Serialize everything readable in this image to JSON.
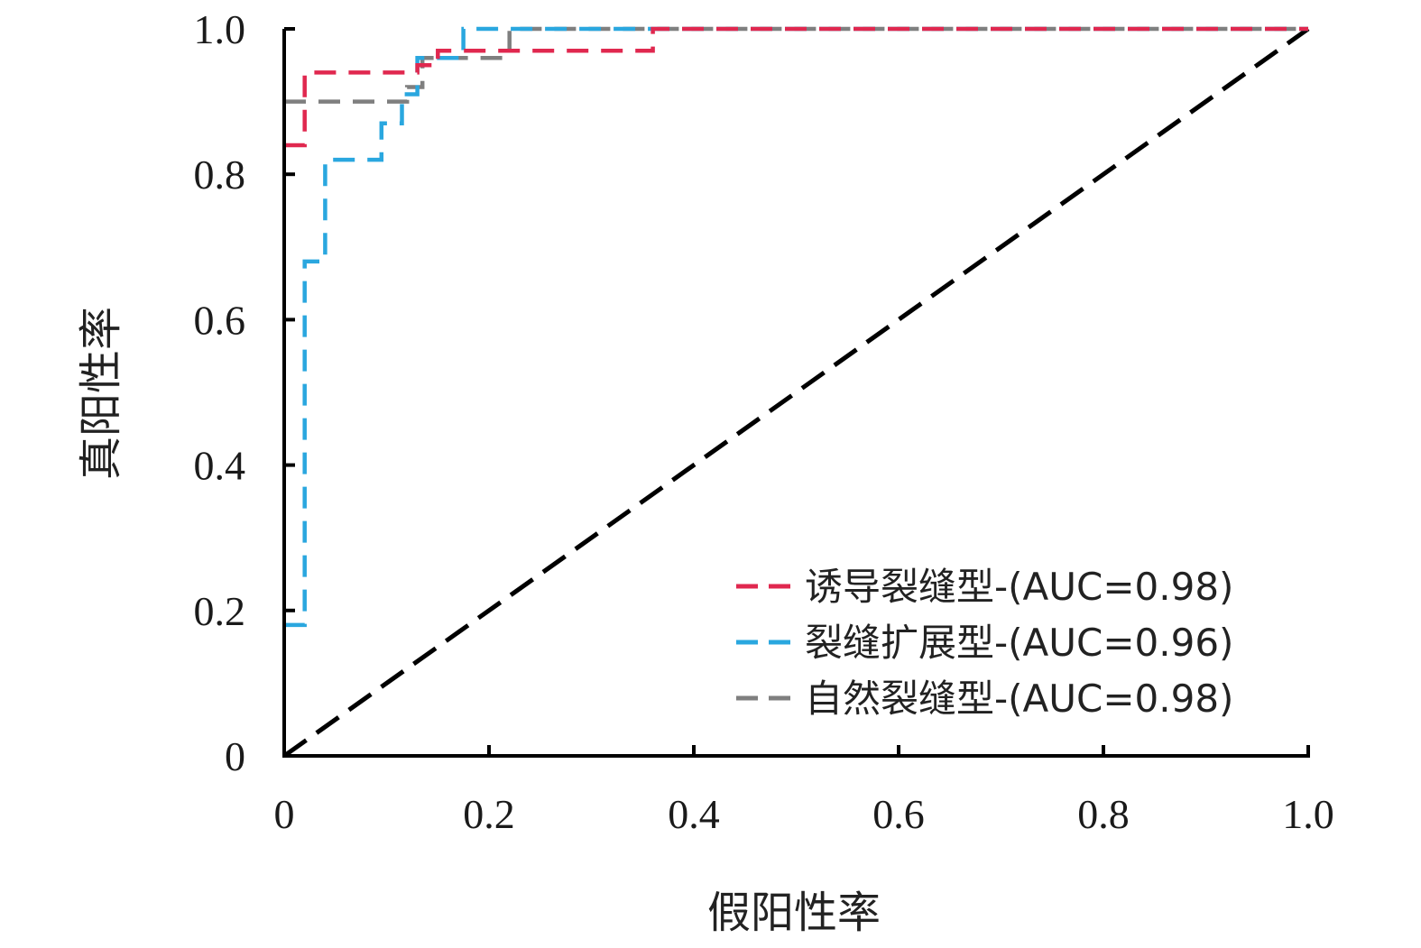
{
  "chart_data": {
    "type": "line",
    "title": "",
    "xlabel": "假阳性率",
    "ylabel": "真阳性率",
    "xlim": [
      0,
      1.0
    ],
    "ylim": [
      0,
      1.0
    ],
    "x_ticks": [
      "0",
      "0.2",
      "0.4",
      "0.6",
      "0.8",
      "1.0"
    ],
    "y_ticks": [
      "0",
      "0.2",
      "0.4",
      "0.6",
      "0.8",
      "1.0"
    ],
    "grid": false,
    "legend_position": "bottom-right",
    "series": [
      {
        "name": "诱导裂缝型-(AUC=0.98)",
        "color": "#e0284f",
        "dash": "dashed",
        "points": [
          [
            0.0,
            0.84
          ],
          [
            0.02,
            0.84
          ],
          [
            0.02,
            0.94
          ],
          [
            0.13,
            0.94
          ],
          [
            0.13,
            0.95
          ],
          [
            0.15,
            0.95
          ],
          [
            0.15,
            0.97
          ],
          [
            0.36,
            0.97
          ],
          [
            0.36,
            1.0
          ],
          [
            1.0,
            1.0
          ]
        ]
      },
      {
        "name": "裂缝扩展型-(AUC=0.96)",
        "color": "#2aa7df",
        "dash": "dashed",
        "points": [
          [
            0.0,
            0.18
          ],
          [
            0.02,
            0.18
          ],
          [
            0.02,
            0.68
          ],
          [
            0.04,
            0.68
          ],
          [
            0.04,
            0.82
          ],
          [
            0.095,
            0.82
          ],
          [
            0.095,
            0.87
          ],
          [
            0.115,
            0.87
          ],
          [
            0.115,
            0.91
          ],
          [
            0.13,
            0.91
          ],
          [
            0.13,
            0.96
          ],
          [
            0.175,
            0.96
          ],
          [
            0.175,
            1.0
          ],
          [
            1.0,
            1.0
          ]
        ]
      },
      {
        "name": "自然裂缝型-(AUC=0.98)",
        "color": "#7f7f7f",
        "dash": "dashed",
        "points": [
          [
            0.0,
            0.9
          ],
          [
            0.12,
            0.9
          ],
          [
            0.12,
            0.92
          ],
          [
            0.135,
            0.92
          ],
          [
            0.135,
            0.96
          ],
          [
            0.22,
            0.96
          ],
          [
            0.22,
            1.0
          ],
          [
            1.0,
            1.0
          ]
        ]
      },
      {
        "name": "",
        "color": "#000000",
        "dash": "dashed",
        "points": [
          [
            0.0,
            0.0
          ],
          [
            1.0,
            1.0
          ]
        ]
      }
    ]
  }
}
